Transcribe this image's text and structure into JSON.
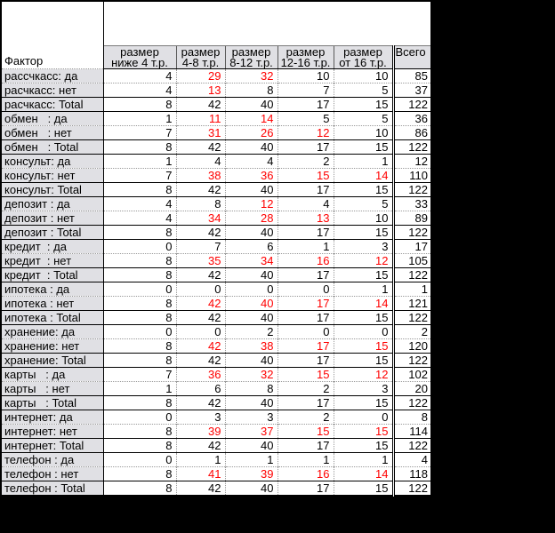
{
  "chart_data": {
    "type": "table",
    "title": "",
    "corner_label": "Фактор",
    "columns": [
      {
        "line1": "размер",
        "line2": "ниже 4 т.р."
      },
      {
        "line1": "размер",
        "line2": "4-8 т.р."
      },
      {
        "line1": "размер",
        "line2": "8-12 т.р."
      },
      {
        "line1": "размер",
        "line2": "12-16 т.р."
      },
      {
        "line1": "размер",
        "line2": "от 16 т.р."
      }
    ],
    "total_column": "Всего",
    "rows": [
      {
        "label": "рассчкасс: да",
        "kind": "data",
        "values": [
          4,
          29,
          32,
          10,
          10
        ],
        "red": [
          0,
          1,
          1,
          0,
          0
        ],
        "total": 85
      },
      {
        "label": "расчкасс: нет",
        "kind": "data",
        "values": [
          4,
          13,
          8,
          7,
          5
        ],
        "red": [
          0,
          1,
          0,
          0,
          0
        ],
        "total": 37
      },
      {
        "label": "расчкасс: Total",
        "kind": "total",
        "values": [
          8,
          42,
          40,
          17,
          15
        ],
        "red": [
          0,
          0,
          0,
          0,
          0
        ],
        "total": 122
      },
      {
        "label": "обмен   : да",
        "kind": "data",
        "values": [
          1,
          11,
          14,
          5,
          5
        ],
        "red": [
          0,
          1,
          1,
          0,
          0
        ],
        "total": 36
      },
      {
        "label": "обмен   : нет",
        "kind": "data",
        "values": [
          7,
          31,
          26,
          12,
          10
        ],
        "red": [
          0,
          1,
          1,
          1,
          0
        ],
        "total": 86
      },
      {
        "label": "обмен   : Total",
        "kind": "total",
        "values": [
          8,
          42,
          40,
          17,
          15
        ],
        "red": [
          0,
          0,
          0,
          0,
          0
        ],
        "total": 122
      },
      {
        "label": "консульт: да",
        "kind": "data",
        "values": [
          1,
          4,
          4,
          2,
          1
        ],
        "red": [
          0,
          0,
          0,
          0,
          0
        ],
        "total": 12
      },
      {
        "label": "консульт: нет",
        "kind": "data",
        "values": [
          7,
          38,
          36,
          15,
          14
        ],
        "red": [
          0,
          1,
          1,
          1,
          1
        ],
        "total": 110
      },
      {
        "label": "консульт: Total",
        "kind": "total",
        "values": [
          8,
          42,
          40,
          17,
          15
        ],
        "red": [
          0,
          0,
          0,
          0,
          0
        ],
        "total": 122
      },
      {
        "label": "депозит : да",
        "kind": "data",
        "values": [
          4,
          8,
          12,
          4,
          5
        ],
        "red": [
          0,
          0,
          1,
          0,
          0
        ],
        "total": 33
      },
      {
        "label": "депозит : нет",
        "kind": "data",
        "values": [
          4,
          34,
          28,
          13,
          10
        ],
        "red": [
          0,
          1,
          1,
          1,
          0
        ],
        "total": 89
      },
      {
        "label": "депозит : Total",
        "kind": "total",
        "values": [
          8,
          42,
          40,
          17,
          15
        ],
        "red": [
          0,
          0,
          0,
          0,
          0
        ],
        "total": 122
      },
      {
        "label": "кредит  : да",
        "kind": "data",
        "values": [
          0,
          7,
          6,
          1,
          3
        ],
        "red": [
          0,
          0,
          0,
          0,
          0
        ],
        "total": 17
      },
      {
        "label": "кредит  : нет",
        "kind": "data",
        "values": [
          8,
          35,
          34,
          16,
          12
        ],
        "red": [
          0,
          1,
          1,
          1,
          1
        ],
        "total": 105
      },
      {
        "label": "кредит  : Total",
        "kind": "total",
        "values": [
          8,
          42,
          40,
          17,
          15
        ],
        "red": [
          0,
          0,
          0,
          0,
          0
        ],
        "total": 122
      },
      {
        "label": "ипотека : да",
        "kind": "data",
        "values": [
          0,
          0,
          0,
          0,
          1
        ],
        "red": [
          0,
          0,
          0,
          0,
          0
        ],
        "total": 1
      },
      {
        "label": "ипотека : нет",
        "kind": "data",
        "values": [
          8,
          42,
          40,
          17,
          14
        ],
        "red": [
          0,
          1,
          1,
          1,
          1
        ],
        "total": 121
      },
      {
        "label": "ипотека : Total",
        "kind": "total",
        "values": [
          8,
          42,
          40,
          17,
          15
        ],
        "red": [
          0,
          0,
          0,
          0,
          0
        ],
        "total": 122
      },
      {
        "label": "хранение: да",
        "kind": "data",
        "values": [
          0,
          0,
          2,
          0,
          0
        ],
        "red": [
          0,
          0,
          0,
          0,
          0
        ],
        "total": 2
      },
      {
        "label": "хранение: нет",
        "kind": "data",
        "values": [
          8,
          42,
          38,
          17,
          15
        ],
        "red": [
          0,
          1,
          1,
          1,
          1
        ],
        "total": 120
      },
      {
        "label": "хранение: Total",
        "kind": "total",
        "values": [
          8,
          42,
          40,
          17,
          15
        ],
        "red": [
          0,
          0,
          0,
          0,
          0
        ],
        "total": 122
      },
      {
        "label": "карты   : да",
        "kind": "data",
        "values": [
          7,
          36,
          32,
          15,
          12
        ],
        "red": [
          0,
          1,
          1,
          1,
          1
        ],
        "total": 102
      },
      {
        "label": "карты   : нет",
        "kind": "data",
        "values": [
          1,
          6,
          8,
          2,
          3
        ],
        "red": [
          0,
          0,
          0,
          0,
          0
        ],
        "total": 20
      },
      {
        "label": "карты   : Total",
        "kind": "total",
        "values": [
          8,
          42,
          40,
          17,
          15
        ],
        "red": [
          0,
          0,
          0,
          0,
          0
        ],
        "total": 122
      },
      {
        "label": "интернет: да",
        "kind": "data",
        "values": [
          0,
          3,
          3,
          2,
          0
        ],
        "red": [
          0,
          0,
          0,
          0,
          0
        ],
        "total": 8
      },
      {
        "label": "интернет: нет",
        "kind": "data",
        "values": [
          8,
          39,
          37,
          15,
          15
        ],
        "red": [
          0,
          1,
          1,
          1,
          1
        ],
        "total": 114
      },
      {
        "label": "интернет: Total",
        "kind": "total",
        "values": [
          8,
          42,
          40,
          17,
          15
        ],
        "red": [
          0,
          0,
          0,
          0,
          0
        ],
        "total": 122
      },
      {
        "label": "телефон : да",
        "kind": "data",
        "values": [
          0,
          1,
          1,
          1,
          1
        ],
        "red": [
          0,
          0,
          0,
          0,
          0
        ],
        "total": 4
      },
      {
        "label": "телефон : нет",
        "kind": "data",
        "values": [
          8,
          41,
          39,
          16,
          14
        ],
        "red": [
          0,
          1,
          1,
          1,
          1
        ],
        "total": 118
      },
      {
        "label": "телефон : Total",
        "kind": "total",
        "values": [
          8,
          42,
          40,
          17,
          15
        ],
        "red": [
          0,
          0,
          0,
          0,
          0
        ],
        "total": 122
      }
    ],
    "colors": {
      "highlight_value": "#ff0000",
      "text": "#000000",
      "background": "#000000",
      "header_fill": "#d9d9d9"
    },
    "layout": {
      "grid": "excel-style cross-tab",
      "legend": "none",
      "note": "red numbers mark highlighted cell counts"
    }
  }
}
